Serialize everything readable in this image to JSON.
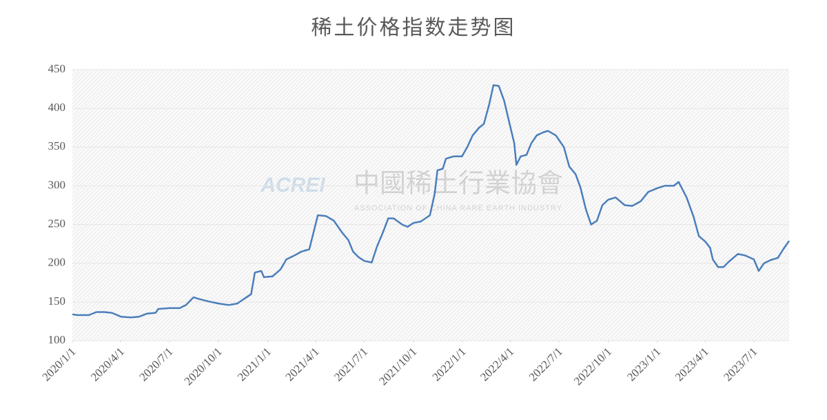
{
  "chart_data": {
    "type": "line",
    "title": "稀土价格指数走势图",
    "watermark": {
      "logo": "ACREI",
      "name": "中國稀土行業協會",
      "subtitle": "ASSOCIATION OF CHINA RARE EARTH INDUSTRY"
    },
    "xlim": [
      "2020/1/1",
      "2023/9/5"
    ],
    "xticks": [
      "2020/1/1",
      "2020/4/1",
      "2020/7/1",
      "2020/10/1",
      "2021/1/1",
      "2021/4/1",
      "2021/7/1",
      "2021/10/1",
      "2022/1/1",
      "2022/4/1",
      "2022/7/1",
      "2022/10/1",
      "2023/1/1",
      "2023/4/1",
      "2023/7/1"
    ],
    "ylim": [
      100,
      450
    ],
    "yticks": [
      100,
      150,
      200,
      250,
      300,
      350,
      400,
      450
    ],
    "grid": true,
    "series": [
      {
        "color": "#4a7ebb",
        "x": [
          "2020/1/1",
          "2020/1/10",
          "2020/2/1",
          "2020/2/15",
          "2020/3/1",
          "2020/3/15",
          "2020/4/1",
          "2020/4/20",
          "2020/5/5",
          "2020/5/20",
          "2020/6/5",
          "2020/6/10",
          "2020/7/1",
          "2020/7/20",
          "2020/8/1",
          "2020/8/15",
          "2020/8/25",
          "2020/9/10",
          "2020/10/1",
          "2020/10/20",
          "2020/11/5",
          "2020/11/20",
          "2020/12/1",
          "2020/12/8",
          "2020/12/20",
          "2020/12/25",
          "2021/1/10",
          "2021/1/25",
          "2021/2/5",
          "2021/2/20",
          "2021/3/5",
          "2021/3/20",
          "2021/3/28",
          "2021/4/5",
          "2021/4/20",
          "2021/5/5",
          "2021/5/20",
          "2021/6/1",
          "2021/6/10",
          "2021/6/20",
          "2021/7/1",
          "2021/7/15",
          "2021/7/25",
          "2021/8/5",
          "2021/8/15",
          "2021/8/25",
          "2021/9/10",
          "2021/9/20",
          "2021/10/1",
          "2021/10/15",
          "2021/11/1",
          "2021/11/10",
          "2021/11/15",
          "2021/11/25",
          "2021/12/1",
          "2021/12/15",
          "2021/12/31",
          "2022/1/10",
          "2022/1/20",
          "2022/2/1",
          "2022/2/10",
          "2022/2/20",
          "2022/2/28",
          "2022/3/10",
          "2022/3/20",
          "2022/4/1",
          "2022/4/8",
          "2022/4/12",
          "2022/4/20",
          "2022/5/1",
          "2022/5/10",
          "2022/5/20",
          "2022/6/1",
          "2022/6/10",
          "2022/6/25",
          "2022/7/10",
          "2022/7/20",
          "2022/8/1",
          "2022/8/10",
          "2022/8/20",
          "2022/8/30",
          "2022/9/10",
          "2022/9/20",
          "2022/10/1",
          "2022/10/15",
          "2022/11/1",
          "2022/11/15",
          "2022/12/1",
          "2022/12/15",
          "2023/1/1",
          "2023/1/15",
          "2023/2/1",
          "2023/2/10",
          "2023/2/25",
          "2023/3/10",
          "2023/3/20",
          "2023/4/1",
          "2023/4/10",
          "2023/4/15",
          "2023/4/25",
          "2023/5/5",
          "2023/5/15",
          "2023/6/1",
          "2023/6/15",
          "2023/7/1",
          "2023/7/10",
          "2023/7/20",
          "2023/8/1",
          "2023/8/15",
          "2023/8/25",
          "2023/9/5"
        ],
        "values": [
          134,
          133,
          133,
          137,
          137,
          136,
          131,
          130,
          131,
          135,
          136,
          141,
          142,
          142,
          146,
          156,
          154,
          151,
          148,
          146,
          148,
          155,
          160,
          188,
          190,
          182,
          183,
          192,
          205,
          210,
          215,
          218,
          240,
          262,
          261,
          255,
          240,
          230,
          215,
          208,
          203,
          201,
          222,
          240,
          258,
          258,
          250,
          247,
          252,
          254,
          262,
          290,
          320,
          322,
          335,
          338,
          338,
          350,
          365,
          375,
          380,
          405,
          430,
          429,
          410,
          375,
          355,
          327,
          338,
          340,
          355,
          365,
          369,
          371,
          365,
          350,
          325,
          315,
          298,
          270,
          250,
          255,
          275,
          282,
          285,
          275,
          274,
          280,
          292,
          297,
          300,
          300,
          305,
          285,
          260,
          235,
          228,
          220,
          205,
          195,
          195,
          202,
          212,
          210,
          205,
          190,
          200,
          204,
          207,
          218,
          229
        ]
      }
    ]
  }
}
